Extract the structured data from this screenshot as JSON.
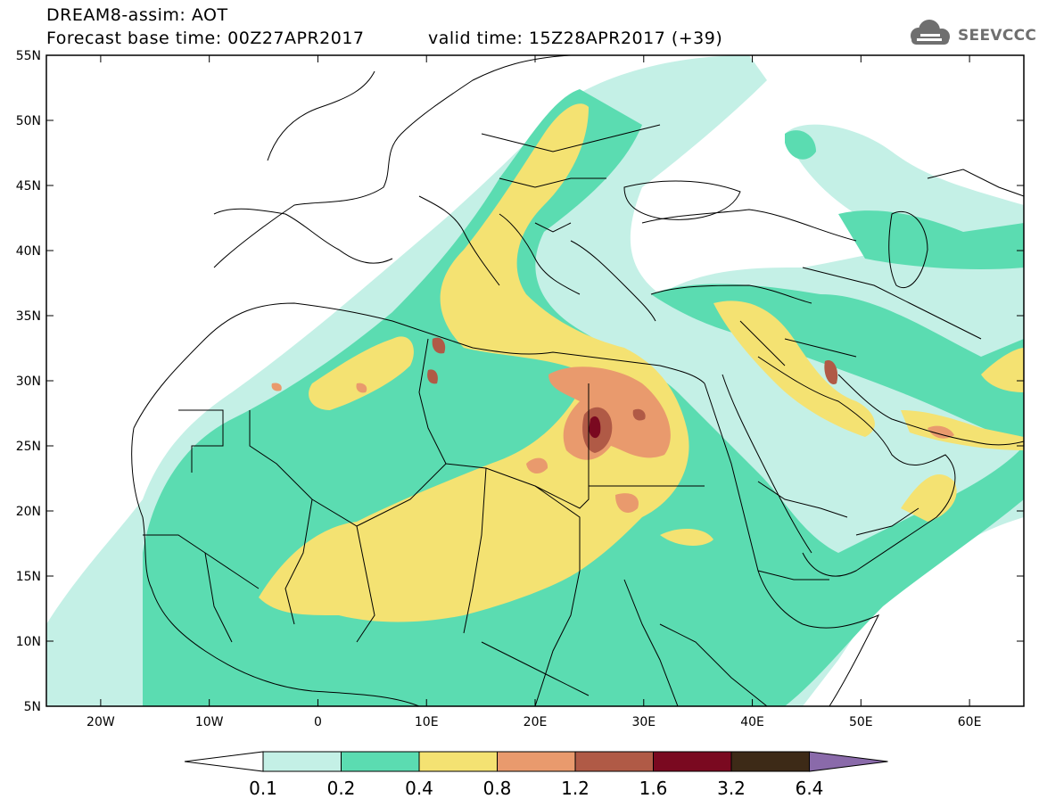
{
  "header": {
    "title_line1": "DREAM8-assim: AOT",
    "title_line2": "Forecast base time: 00Z27APR2017",
    "valid_time": "valid time: 15Z28APR2017 (+39)",
    "logo_text": "SEEVCCC"
  },
  "map": {
    "extent": {
      "lon_min": -25,
      "lon_max": 65,
      "lat_min": 5,
      "lat_max": 55
    },
    "lat_ticks": [
      {
        "value": 55,
        "label": "55N"
      },
      {
        "value": 50,
        "label": "50N"
      },
      {
        "value": 45,
        "label": "45N"
      },
      {
        "value": 40,
        "label": "40N"
      },
      {
        "value": 35,
        "label": "35N"
      },
      {
        "value": 30,
        "label": "30N"
      },
      {
        "value": 25,
        "label": "25N"
      },
      {
        "value": 20,
        "label": "20N"
      },
      {
        "value": 15,
        "label": "15N"
      },
      {
        "value": 10,
        "label": "10N"
      },
      {
        "value": 5,
        "label": "5N"
      }
    ],
    "lon_ticks": [
      {
        "value": -20,
        "label": "20W"
      },
      {
        "value": -10,
        "label": "10W"
      },
      {
        "value": 0,
        "label": "0"
      },
      {
        "value": 10,
        "label": "10E"
      },
      {
        "value": 20,
        "label": "20E"
      },
      {
        "value": 30,
        "label": "30E"
      },
      {
        "value": 40,
        "label": "40E"
      },
      {
        "value": 50,
        "label": "50E"
      },
      {
        "value": 60,
        "label": "60E"
      }
    ],
    "border_color": "#000000",
    "frame_color": "#000000"
  },
  "legend": {
    "levels": [
      "0.1",
      "0.2",
      "0.4",
      "0.8",
      "1.2",
      "1.6",
      "3.2",
      "6.4"
    ],
    "colors": [
      "#ffffff",
      "#c4f0e6",
      "#5bdcb1",
      "#f4e272",
      "#e99a6d",
      "#b05a46",
      "#7a0920",
      "#3d2a17",
      "#8a6aaa"
    ]
  },
  "colors": {
    "c01": "#c4f0e6",
    "c02": "#5bdcb1",
    "c04": "#f4e272",
    "c08": "#e99a6d",
    "c12": "#b05a46",
    "c16": "#7a0920",
    "logo_gray": "#6f6f6f"
  }
}
